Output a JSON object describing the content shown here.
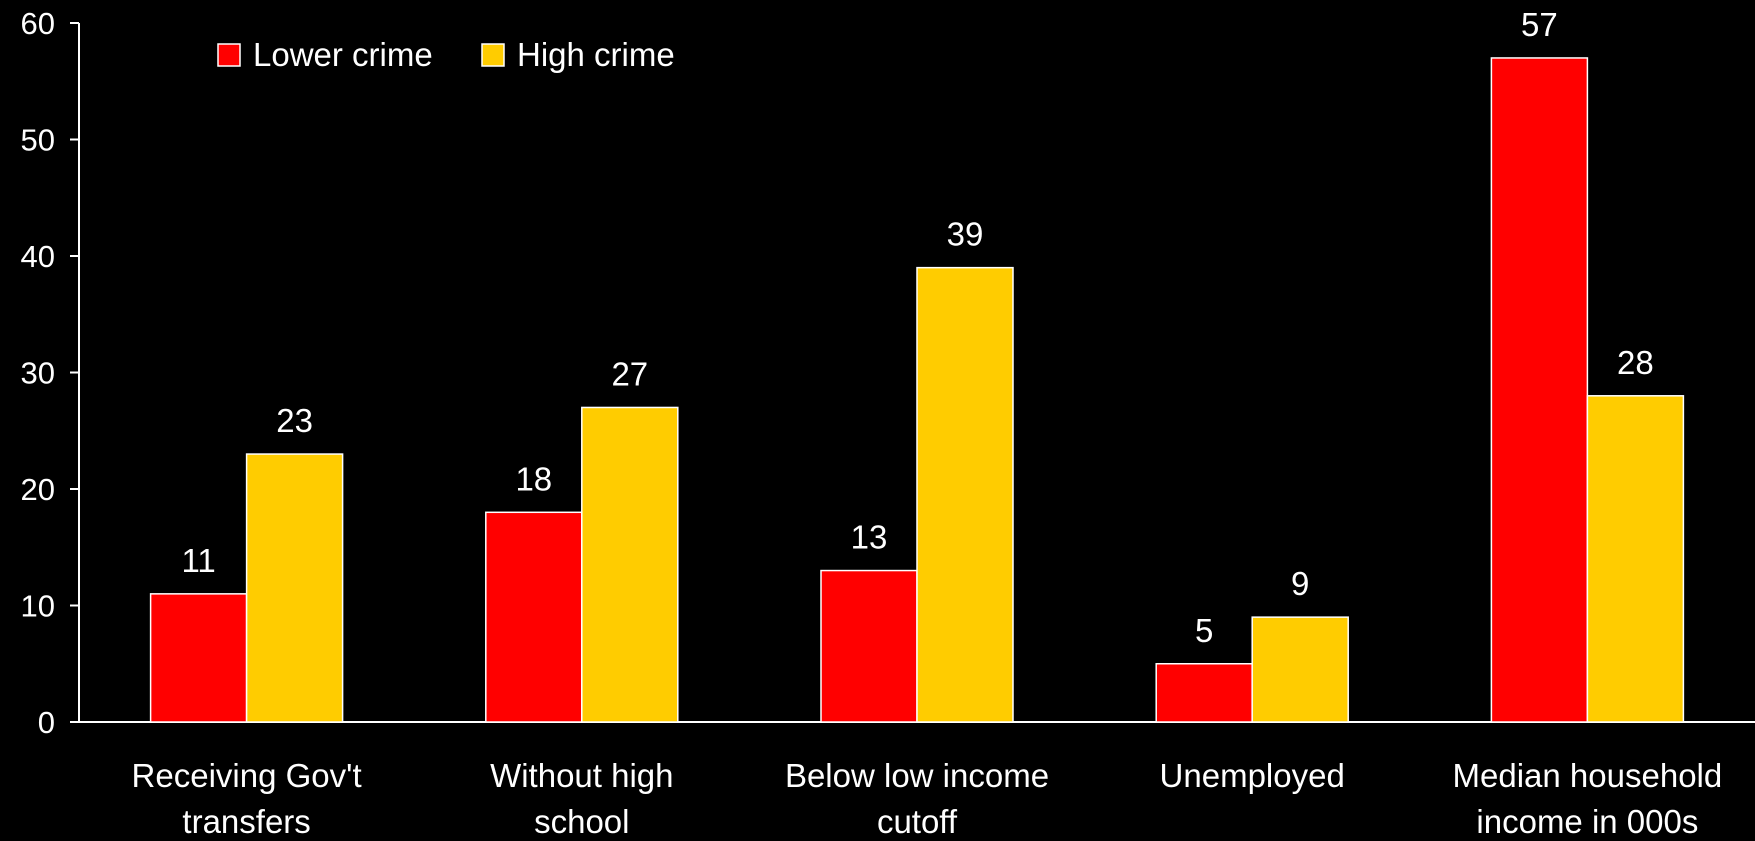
{
  "chart_data": {
    "type": "bar",
    "categories": [
      [
        "Receiving Gov't",
        "transfers"
      ],
      [
        "Without high",
        "school"
      ],
      [
        "Below low income",
        "cutoff"
      ],
      [
        "Unemployed"
      ],
      [
        "Median household",
        "income in 000s"
      ]
    ],
    "series": [
      {
        "name": "Lower crime",
        "color": "#ff0000",
        "values": [
          11,
          18,
          13,
          5,
          57
        ]
      },
      {
        "name": "High crime",
        "color": "#ffcc00",
        "values": [
          23,
          27,
          39,
          9,
          28
        ]
      }
    ],
    "ylim": [
      0,
      60
    ],
    "yticks": [
      0,
      10,
      20,
      30,
      40,
      50,
      60
    ],
    "legend_position": "top-left",
    "grid": false
  }
}
